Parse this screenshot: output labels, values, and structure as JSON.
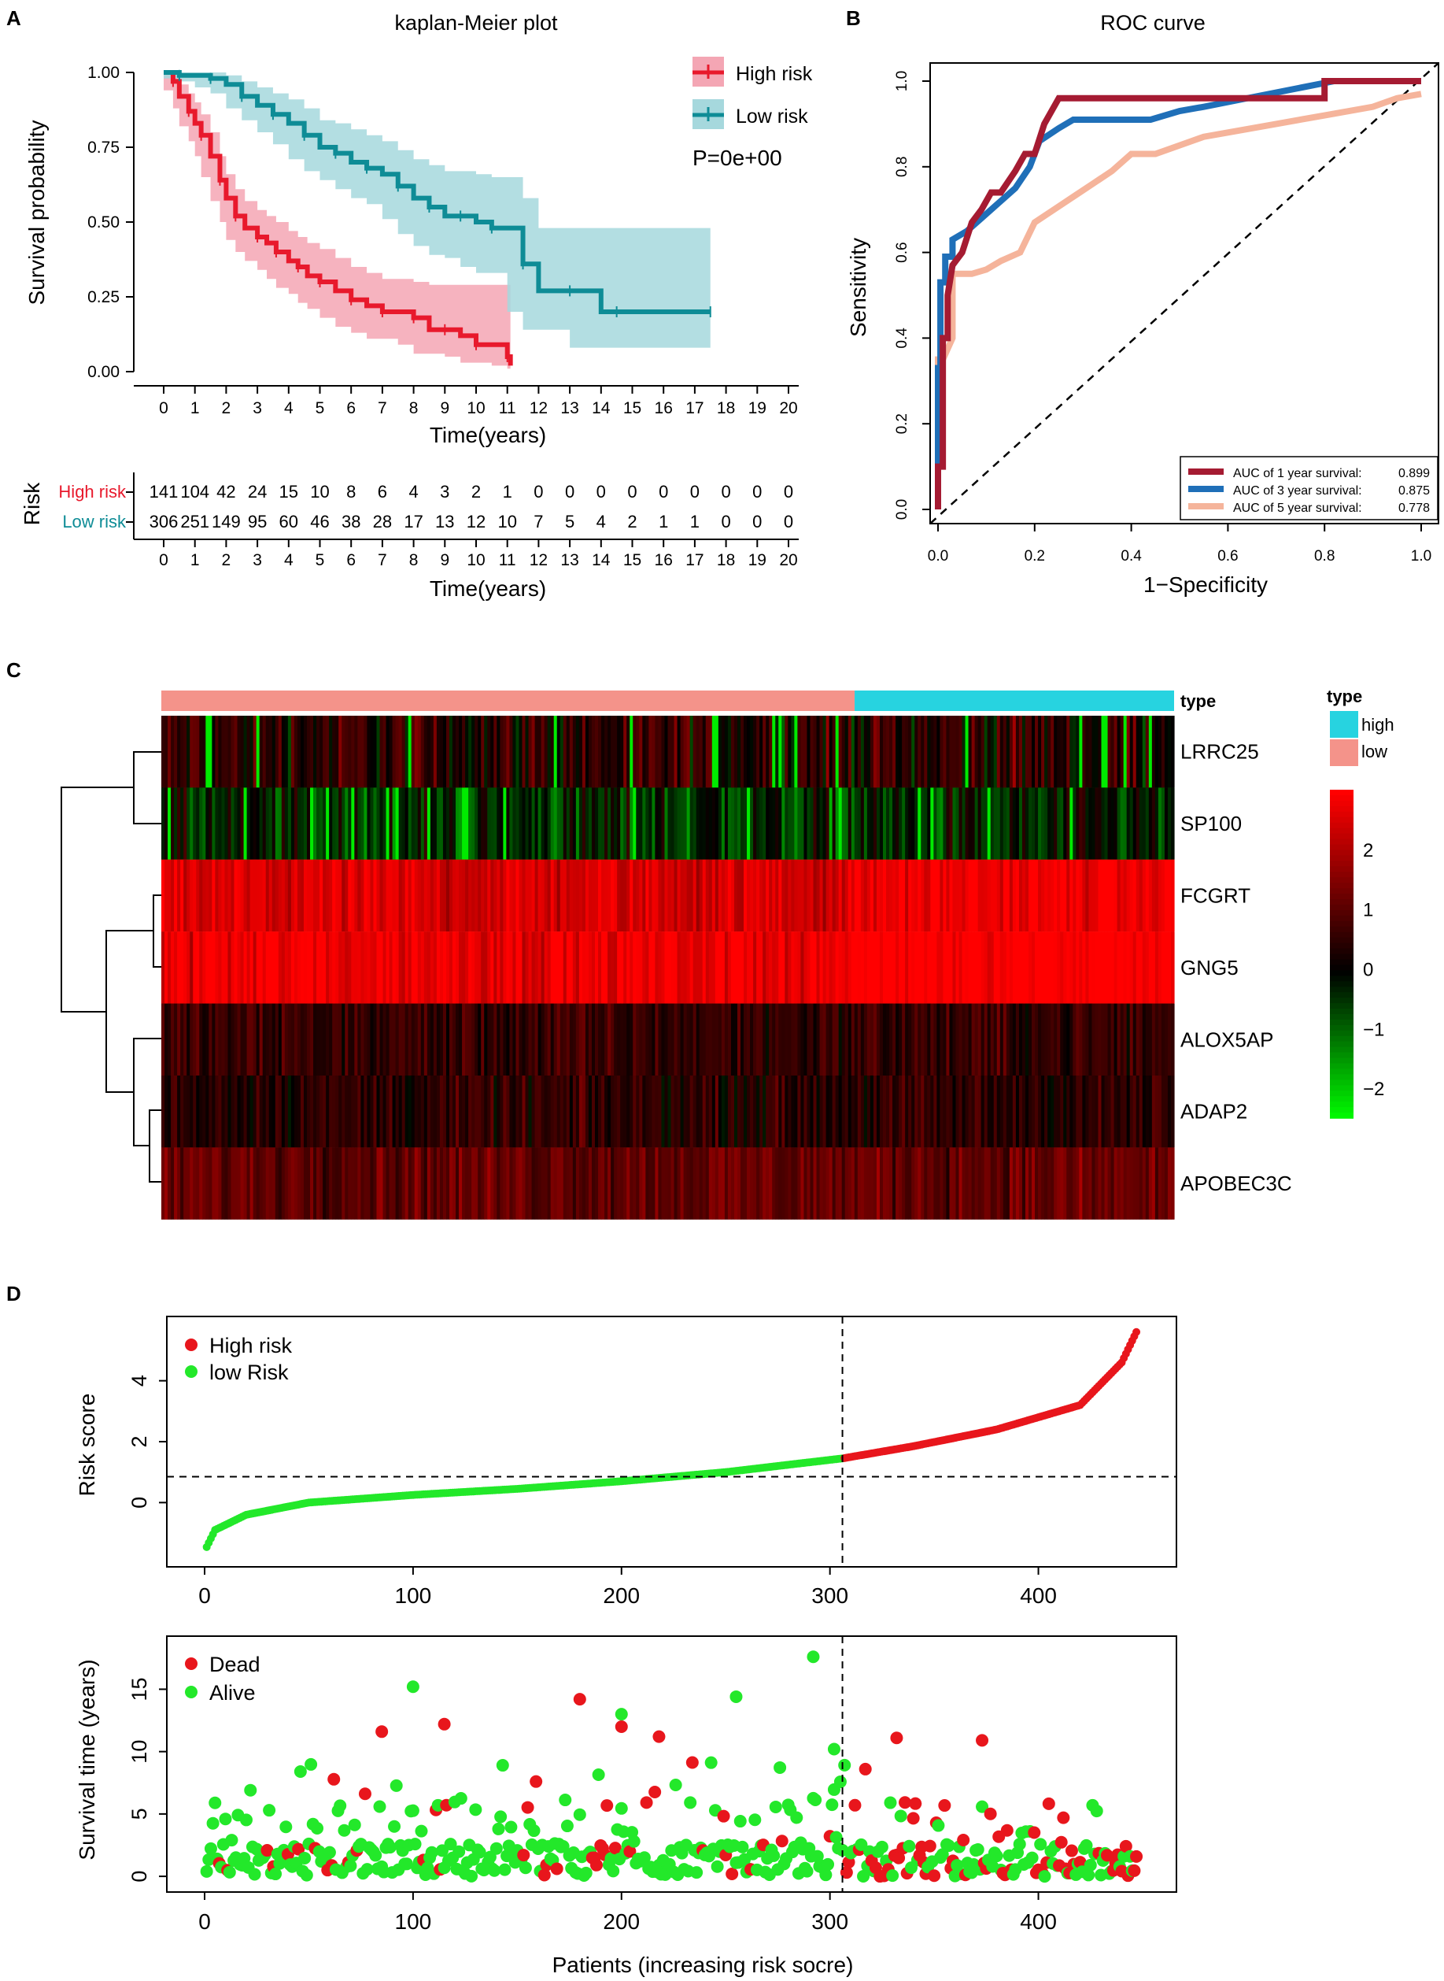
{
  "colors": {
    "high": "#e8192c",
    "high_band": "#f4a6b4",
    "low": "#0e8c96",
    "low_band": "#a6d8dd",
    "roc1": "#a51b32",
    "roc3": "#1f6fb8",
    "roc5": "#f5b49b",
    "type_high": "#27d3e0",
    "type_low": "#f4938a",
    "red_pt": "#e8161c",
    "green_pt": "#23e82a"
  },
  "panels": {
    "a": "A",
    "b": "B",
    "c": "C",
    "d": "D"
  },
  "chart_data": [
    {
      "id": "km",
      "type": "line",
      "title": "kaplan-Meier plot",
      "xlabel": "Time(years)",
      "ylabel": "Survival probability",
      "xlim": [
        0,
        20
      ],
      "ylim": [
        0,
        1
      ],
      "xticks": [
        "0",
        "1",
        "2",
        "3",
        "4",
        "5",
        "6",
        "7",
        "8",
        "9",
        "10",
        "11",
        "12",
        "13",
        "14",
        "15",
        "16",
        "17",
        "18",
        "19",
        "20"
      ],
      "yticks": [
        "0.00",
        "0.25",
        "0.50",
        "0.75",
        "1.00"
      ],
      "legend": [
        "High risk",
        "Low risk"
      ],
      "pvalue": "P=0e+00",
      "series": [
        {
          "name": "High risk",
          "x": [
            0,
            0.3,
            0.5,
            0.8,
            1,
            1.2,
            1.5,
            1.8,
            2,
            2.3,
            2.6,
            3,
            3.3,
            3.6,
            4,
            4.3,
            4.6,
            5,
            5.5,
            6,
            6.5,
            7,
            7.5,
            8,
            8.5,
            9,
            9.5,
            10,
            10.5,
            11,
            11.1
          ],
          "y": [
            1,
            0.97,
            0.92,
            0.87,
            0.83,
            0.79,
            0.72,
            0.64,
            0.58,
            0.52,
            0.48,
            0.45,
            0.43,
            0.4,
            0.37,
            0.35,
            0.32,
            0.3,
            0.27,
            0.24,
            0.22,
            0.2,
            0.2,
            0.18,
            0.14,
            0.14,
            0.12,
            0.09,
            0.09,
            0.05,
            0.02
          ],
          "lower": [
            1,
            0.94,
            0.88,
            0.82,
            0.77,
            0.72,
            0.65,
            0.57,
            0.5,
            0.44,
            0.4,
            0.37,
            0.34,
            0.31,
            0.28,
            0.26,
            0.23,
            0.21,
            0.18,
            0.15,
            0.13,
            0.11,
            0.11,
            0.09,
            0.06,
            0.06,
            0.05,
            0.03,
            0.03,
            0.02,
            0.01
          ],
          "upper": [
            1,
            1,
            0.96,
            0.93,
            0.9,
            0.86,
            0.8,
            0.72,
            0.66,
            0.61,
            0.57,
            0.54,
            0.52,
            0.5,
            0.47,
            0.45,
            0.43,
            0.41,
            0.38,
            0.35,
            0.33,
            0.31,
            0.31,
            0.3,
            0.29,
            0.29,
            0.29,
            0.29,
            0.29,
            0.29,
            0.29
          ]
        },
        {
          "name": "Low risk",
          "x": [
            0,
            0.5,
            1,
            1.5,
            2,
            2.5,
            3,
            3.5,
            4,
            4.5,
            5,
            5.5,
            6,
            6.5,
            7,
            7.5,
            8,
            8.5,
            9,
            9.5,
            10,
            10.5,
            11,
            11.5,
            12,
            13,
            14,
            14.5,
            15,
            17.5
          ],
          "y": [
            1,
            0.99,
            0.99,
            0.98,
            0.96,
            0.92,
            0.89,
            0.86,
            0.83,
            0.79,
            0.75,
            0.73,
            0.7,
            0.68,
            0.66,
            0.62,
            0.58,
            0.55,
            0.52,
            0.52,
            0.5,
            0.48,
            0.48,
            0.36,
            0.27,
            0.27,
            0.2,
            0.2,
            0.2,
            0.2
          ],
          "lower": [
            1,
            0.98,
            0.97,
            0.95,
            0.93,
            0.88,
            0.84,
            0.8,
            0.76,
            0.71,
            0.67,
            0.64,
            0.61,
            0.58,
            0.56,
            0.51,
            0.46,
            0.42,
            0.39,
            0.38,
            0.35,
            0.33,
            0.33,
            0.2,
            0.14,
            0.14,
            0.08,
            0.08,
            0.08,
            0.08
          ],
          "upper": [
            1,
            1,
            1,
            1,
            0.99,
            0.97,
            0.95,
            0.93,
            0.91,
            0.88,
            0.84,
            0.83,
            0.81,
            0.79,
            0.77,
            0.74,
            0.71,
            0.69,
            0.67,
            0.67,
            0.66,
            0.65,
            0.65,
            0.58,
            0.48,
            0.48,
            0.48,
            0.48,
            0.48,
            0.48
          ]
        }
      ],
      "risk_table": {
        "label": "Risk",
        "xlabel": "Time(years)",
        "rows": [
          {
            "name": "High risk",
            "values": [
              "141",
              "104",
              "42",
              "24",
              "15",
              "10",
              "8",
              "6",
              "4",
              "3",
              "2",
              "1",
              "0",
              "0",
              "0",
              "0",
              "0",
              "0",
              "0",
              "0",
              "0"
            ]
          },
          {
            "name": "Low risk",
            "values": [
              "306",
              "251",
              "149",
              "95",
              "60",
              "46",
              "38",
              "28",
              "17",
              "13",
              "12",
              "10",
              "7",
              "5",
              "4",
              "2",
              "1",
              "1",
              "0",
              "0",
              "0"
            ]
          }
        ]
      }
    },
    {
      "id": "roc",
      "type": "line",
      "title": "ROC  curve",
      "xlabel": "1−Specificity",
      "ylabel": "Sensitivity",
      "xlim": [
        0,
        1
      ],
      "ylim": [
        0,
        1
      ],
      "xticks": [
        "0.0",
        "0.2",
        "0.4",
        "0.6",
        "0.8",
        "1.0"
      ],
      "yticks": [
        "0.0",
        "0.2",
        "0.4",
        "0.6",
        "0.8",
        "1.0"
      ],
      "series": [
        {
          "name": "AUC of 1 year survival:",
          "auc": "0.899",
          "x": [
            0,
            0,
            0.01,
            0.01,
            0.02,
            0.02,
            0.03,
            0.05,
            0.07,
            0.09,
            0.11,
            0.13,
            0.16,
            0.18,
            0.2,
            0.22,
            0.25,
            0.3,
            0.5,
            0.8,
            0.8,
            1
          ],
          "y": [
            0,
            0.1,
            0.1,
            0.4,
            0.4,
            0.5,
            0.57,
            0.6,
            0.67,
            0.7,
            0.74,
            0.74,
            0.79,
            0.83,
            0.83,
            0.9,
            0.96,
            0.96,
            0.96,
            0.96,
            1,
            1
          ]
        },
        {
          "name": "AUC of 3 year survival:",
          "auc": "0.875",
          "x": [
            0,
            0,
            0.005,
            0.005,
            0.015,
            0.015,
            0.03,
            0.03,
            0.06,
            0.09,
            0.12,
            0.16,
            0.19,
            0.21,
            0.25,
            0.28,
            0.33,
            0.44,
            0.5,
            0.55,
            0.64,
            0.82,
            1
          ],
          "y": [
            0,
            0.33,
            0.33,
            0.53,
            0.53,
            0.59,
            0.59,
            0.63,
            0.65,
            0.68,
            0.71,
            0.75,
            0.8,
            0.86,
            0.89,
            0.91,
            0.91,
            0.91,
            0.93,
            0.94,
            0.96,
            1,
            1
          ]
        },
        {
          "name": "AUC of 5 year survival:",
          "auc": "0.778",
          "x": [
            0,
            0,
            0.01,
            0.03,
            0.03,
            0.07,
            0.1,
            0.13,
            0.17,
            0.2,
            0.24,
            0.28,
            0.32,
            0.36,
            0.4,
            0.45,
            0.5,
            0.55,
            0.6,
            0.7,
            0.8,
            0.9,
            0.95,
            1
          ],
          "y": [
            0,
            0.35,
            0.35,
            0.4,
            0.55,
            0.55,
            0.56,
            0.58,
            0.6,
            0.67,
            0.7,
            0.73,
            0.76,
            0.79,
            0.83,
            0.83,
            0.85,
            0.87,
            0.88,
            0.9,
            0.92,
            0.94,
            0.96,
            0.97
          ]
        }
      ]
    },
    {
      "id": "heatmap",
      "type": "heatmap",
      "genes": [
        "LRRC25",
        "SP100",
        "FCGRT",
        "GNG5",
        "ALOX5AP",
        "ADAP2",
        "APOBEC3C"
      ],
      "gene_mean": [
        0.5,
        -0.4,
        2.5,
        2.8,
        0.6,
        0.5,
        1.2
      ],
      "n_low": 306,
      "n_high": 141,
      "annotation_label": "type",
      "legend_title": "type",
      "legend_items": [
        "high",
        "low"
      ],
      "scale_ticks": [
        "2",
        "1",
        "0",
        "−1",
        "−2"
      ],
      "scale_range": [
        -2.5,
        3
      ]
    },
    {
      "id": "riskscore",
      "type": "scatter",
      "ylabel": "Risk score",
      "xlim": [
        0,
        450
      ],
      "ylim": [
        -1.8,
        5.8
      ],
      "xticks": [
        "0",
        "100",
        "200",
        "300",
        "400"
      ],
      "yticks": [
        "0",
        "2",
        "4"
      ],
      "legend": [
        "High risk",
        "low Risk"
      ],
      "cutoff_index": 306,
      "cutoff_value": 0.85,
      "n": 447,
      "curve_x": [
        0,
        5,
        20,
        50,
        100,
        150,
        200,
        250,
        306,
        340,
        380,
        420,
        440,
        447
      ],
      "curve_y": [
        -1.6,
        -0.9,
        -0.4,
        0,
        0.25,
        0.45,
        0.7,
        1.0,
        1.45,
        1.85,
        2.4,
        3.2,
        4.6,
        5.6
      ]
    },
    {
      "id": "survtime",
      "type": "scatter",
      "xlabel": "Patients (increasing risk socre)",
      "ylabel": "Survival time (years)",
      "xlim": [
        0,
        450
      ],
      "ylim": [
        -0.5,
        18.5
      ],
      "xticks": [
        "0",
        "100",
        "200",
        "300",
        "400"
      ],
      "yticks": [
        "0",
        "5",
        "10",
        "15"
      ],
      "legend": [
        "Dead",
        "Alive"
      ],
      "cutoff_index": 306,
      "notable_points": [
        {
          "x": 85,
          "y": 11.6,
          "status": "Dead"
        },
        {
          "x": 115,
          "y": 12.2,
          "status": "Dead"
        },
        {
          "x": 180,
          "y": 14.2,
          "status": "Dead"
        },
        {
          "x": 200,
          "y": 12.0,
          "status": "Dead"
        },
        {
          "x": 218,
          "y": 11.2,
          "status": "Dead"
        },
        {
          "x": 100,
          "y": 15.2,
          "status": "Alive"
        },
        {
          "x": 200,
          "y": 13.0,
          "status": "Alive"
        },
        {
          "x": 255,
          "y": 14.4,
          "status": "Alive"
        },
        {
          "x": 292,
          "y": 17.6,
          "status": "Alive"
        },
        {
          "x": 302,
          "y": 10.2,
          "status": "Alive"
        },
        {
          "x": 332,
          "y": 11.1,
          "status": "Dead"
        },
        {
          "x": 373,
          "y": 10.9,
          "status": "Dead"
        }
      ]
    }
  ]
}
